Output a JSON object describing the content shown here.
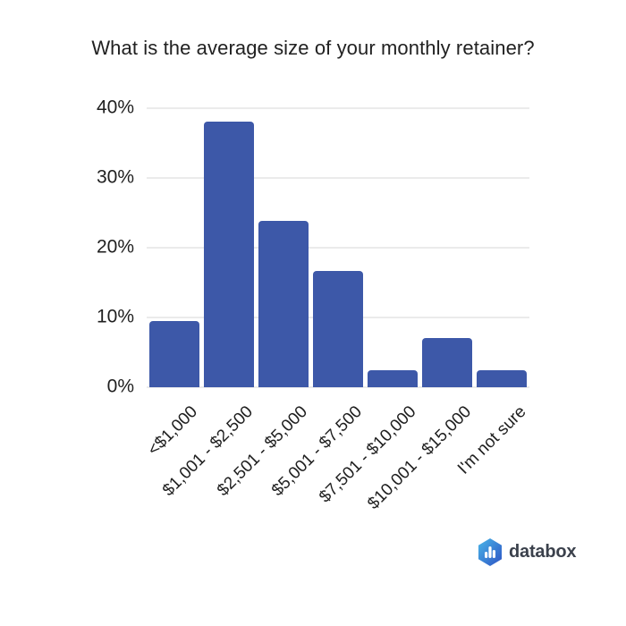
{
  "title": "What is the average size of your monthly retainer?",
  "chart_data": {
    "type": "bar",
    "title": "What is the average size of your monthly retainer?",
    "categories": [
      "<$1,000",
      "$1,001 - $2,500",
      "$2,501 - $5,000",
      "$5,001 - $7,500",
      "$7,501 - $10,000",
      "$10,001 - $15,000",
      "I'm not sure"
    ],
    "values": [
      9.5,
      38.1,
      23.8,
      16.7,
      2.4,
      7.1,
      2.4
    ],
    "value_unit": "%",
    "xlabel": "",
    "ylabel": "",
    "ylim": [
      0,
      40
    ],
    "yticks": [
      0,
      10,
      20,
      30,
      40
    ],
    "ytick_labels": [
      "0%",
      "10%",
      "20%",
      "30%",
      "40%"
    ],
    "grid": true,
    "legend": "none",
    "x_label_rotation_deg": 45,
    "bar_color": "#3d58a8"
  },
  "colors": {
    "background": "#ffffff",
    "bar": "#3d58a8",
    "gridline": "#ebebeb",
    "label_text": "#1f1f1f",
    "title_text": "#212121",
    "logo_text": "#3b414c",
    "logo_gradient_start": "#4ab6e8",
    "logo_gradient_end": "#2d53c4"
  },
  "branding": {
    "logo_text": "databox",
    "logo_icon": "databox-hexagon-bar-chart-icon"
  }
}
